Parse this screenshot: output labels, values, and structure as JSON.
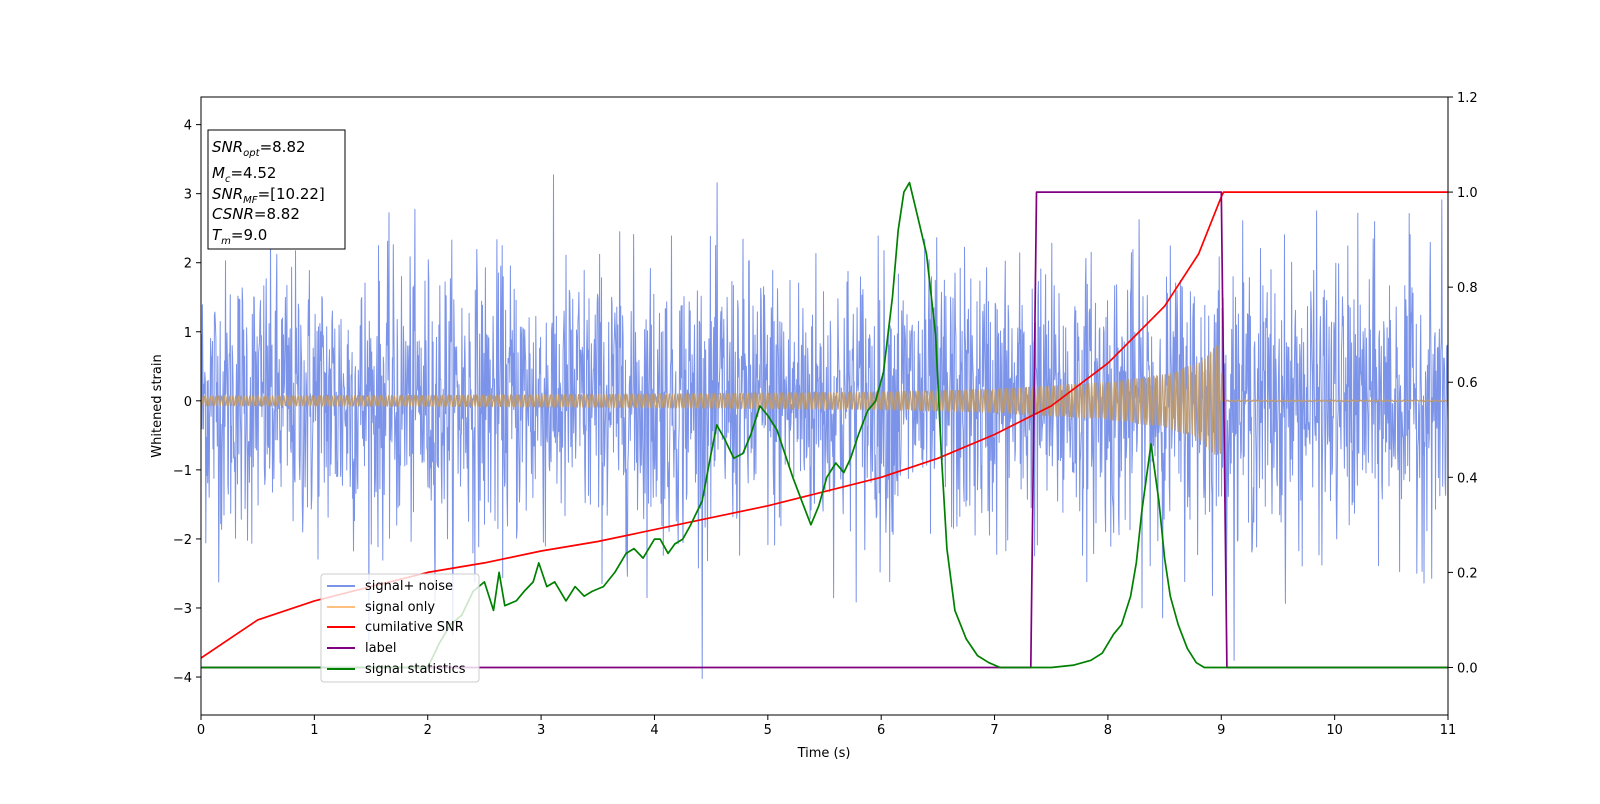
{
  "chart_data": {
    "type": "line",
    "xlabel": "Time (s)",
    "ylabel": "Whitened strain",
    "xlim": [
      0,
      11
    ],
    "ylim_left": [
      -4.55,
      4.4
    ],
    "ylim_right": [
      -0.1,
      1.2
    ],
    "x_ticks": [
      0,
      1,
      2,
      3,
      4,
      5,
      6,
      7,
      8,
      9,
      10,
      11
    ],
    "y_ticks_left": [
      -4,
      -3,
      -2,
      -1,
      0,
      1,
      2,
      3,
      4
    ],
    "y_ticks_right": [
      0.0,
      0.2,
      0.4,
      0.6,
      0.8,
      1.0,
      1.2
    ],
    "x_tick_labels": [
      "0",
      "1",
      "2",
      "3",
      "4",
      "5",
      "6",
      "7",
      "8",
      "9",
      "10",
      "11"
    ],
    "y_tick_labels_left": [
      "−4",
      "−3",
      "−2",
      "−1",
      "0",
      "1",
      "2",
      "3",
      "4"
    ],
    "y_tick_labels_right": [
      "0.0",
      "0.2",
      "0.4",
      "0.6",
      "0.8",
      "1.0",
      "1.2"
    ],
    "legend_position": "lower-left",
    "info_box": {
      "snr_opt": {
        "main": "SNR",
        "sub": "opt",
        "value": "=8.82"
      },
      "mc": {
        "main": "M",
        "sub": "c",
        "value": "=4.52"
      },
      "snr_mf": {
        "main": "SNR",
        "sub": "MF",
        "value": "=[10.22]"
      },
      "csnr": {
        "main": "CSNR",
        "value": "=8.82"
      },
      "tm": {
        "main": "T",
        "sub": "m",
        "value": "=9.0"
      }
    },
    "series": [
      {
        "name": "signal+ noise",
        "color": "#7b93e8",
        "axis": "left",
        "style": "noise",
        "amplitude": 1.0,
        "x_range": [
          0,
          11
        ]
      },
      {
        "name": "signal only",
        "color": "#bd9b73",
        "axis": "left",
        "style": "chirp",
        "envelope_x": [
          0,
          2,
          4,
          6,
          7,
          8,
          8.5,
          8.8,
          8.95,
          9.0,
          9.01,
          11
        ],
        "envelope_y": [
          0.07,
          0.08,
          0.1,
          0.13,
          0.17,
          0.27,
          0.38,
          0.55,
          0.8,
          0.8,
          0.01,
          0.01
        ]
      },
      {
        "name": "cumilative SNR",
        "color": "#ff0000",
        "axis": "right",
        "x": [
          0,
          0.5,
          1,
          1.5,
          2,
          2.5,
          3,
          3.5,
          4,
          4.5,
          5,
          5.5,
          6,
          6.5,
          7,
          7.5,
          8,
          8.5,
          8.8,
          9.0,
          9.02,
          11
        ],
        "y": [
          0.02,
          0.1,
          0.14,
          0.17,
          0.2,
          0.22,
          0.245,
          0.265,
          0.29,
          0.315,
          0.34,
          0.37,
          0.4,
          0.44,
          0.49,
          0.55,
          0.64,
          0.76,
          0.87,
          0.99,
          1.0,
          1.0
        ]
      },
      {
        "name": "label",
        "color": "#800080",
        "axis": "right",
        "x": [
          0,
          7.32,
          7.37,
          9.0,
          9.05,
          11
        ],
        "y": [
          0,
          0,
          1,
          1,
          0,
          0
        ]
      },
      {
        "name": "signal statistics",
        "color": "#008000",
        "axis": "right",
        "x": [
          0,
          1.0,
          1.5,
          2.0,
          2.1,
          2.2,
          2.3,
          2.4,
          2.5,
          2.58,
          2.63,
          2.68,
          2.78,
          2.85,
          2.93,
          2.98,
          3.05,
          3.12,
          3.22,
          3.3,
          3.38,
          3.45,
          3.55,
          3.65,
          3.75,
          3.82,
          3.9,
          4.0,
          4.05,
          4.12,
          4.18,
          4.25,
          4.32,
          4.42,
          4.5,
          4.55,
          4.62,
          4.7,
          4.78,
          4.85,
          4.93,
          5.0,
          5.08,
          5.15,
          5.22,
          5.3,
          5.38,
          5.45,
          5.52,
          5.6,
          5.67,
          5.73,
          5.8,
          5.88,
          5.95,
          6.02,
          6.1,
          6.15,
          6.2,
          6.25,
          6.3,
          6.4,
          6.48,
          6.53,
          6.58,
          6.65,
          6.75,
          6.85,
          6.95,
          7.05,
          7.2,
          7.5,
          7.7,
          7.85,
          7.95,
          8.0,
          8.05,
          8.12,
          8.2,
          8.25,
          8.3,
          8.38,
          8.45,
          8.5,
          8.55,
          8.62,
          8.7,
          8.78,
          8.85,
          8.95,
          9.1,
          9.5,
          11
        ],
        "y": [
          0.0,
          0.0,
          0.0,
          0.0,
          0.05,
          0.09,
          0.11,
          0.16,
          0.18,
          0.12,
          0.2,
          0.13,
          0.14,
          0.16,
          0.18,
          0.22,
          0.17,
          0.18,
          0.14,
          0.17,
          0.15,
          0.16,
          0.17,
          0.2,
          0.24,
          0.25,
          0.23,
          0.27,
          0.27,
          0.24,
          0.26,
          0.27,
          0.3,
          0.35,
          0.45,
          0.51,
          0.48,
          0.44,
          0.45,
          0.49,
          0.55,
          0.53,
          0.5,
          0.45,
          0.4,
          0.35,
          0.3,
          0.34,
          0.4,
          0.43,
          0.41,
          0.44,
          0.49,
          0.54,
          0.56,
          0.62,
          0.78,
          0.92,
          1.0,
          1.02,
          0.97,
          0.87,
          0.7,
          0.45,
          0.25,
          0.12,
          0.06,
          0.025,
          0.01,
          0.0,
          0.0,
          0.0,
          0.005,
          0.015,
          0.03,
          0.05,
          0.07,
          0.09,
          0.15,
          0.22,
          0.33,
          0.47,
          0.35,
          0.23,
          0.15,
          0.09,
          0.04,
          0.01,
          0.0,
          0.0,
          0.0,
          0.0,
          0.0
        ]
      }
    ]
  }
}
